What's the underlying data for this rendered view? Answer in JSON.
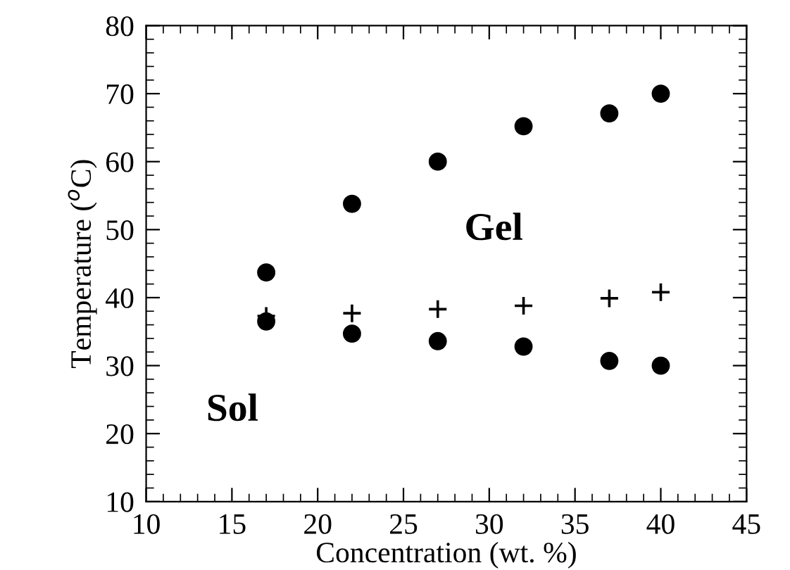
{
  "chart_data": {
    "type": "scatter",
    "xlabel": "Concentration (wt. %)",
    "ylabel": "Temperature ($^{o}$C)",
    "annotations": [
      "Gel",
      "Sol"
    ],
    "x": [
      17,
      22,
      27,
      32,
      37,
      40
    ],
    "series": [
      {
        "color": "#000000",
        "marker": "circle",
        "values": [
          43.7,
          53.8,
          60,
          65.2,
          67.1,
          70
        ]
      },
      {
        "color": "#000000",
        "marker": "cross",
        "values": [
          37.3,
          37.7,
          38.3,
          38.8,
          39.9,
          40.8
        ]
      },
      {
        "color": "#000000",
        "marker": "circle",
        "values": [
          36.5,
          34.7,
          33.6,
          32.8,
          30.7,
          30
        ]
      }
    ],
    "xlim": [
      10,
      45
    ],
    "xticks": [
      10,
      15,
      20,
      25,
      30,
      35,
      40,
      45
    ],
    "ylim": [
      10,
      80
    ],
    "yticks": [
      10,
      20,
      30,
      40,
      50,
      60,
      70,
      80
    ],
    "grid": false,
    "legend": false
  }
}
